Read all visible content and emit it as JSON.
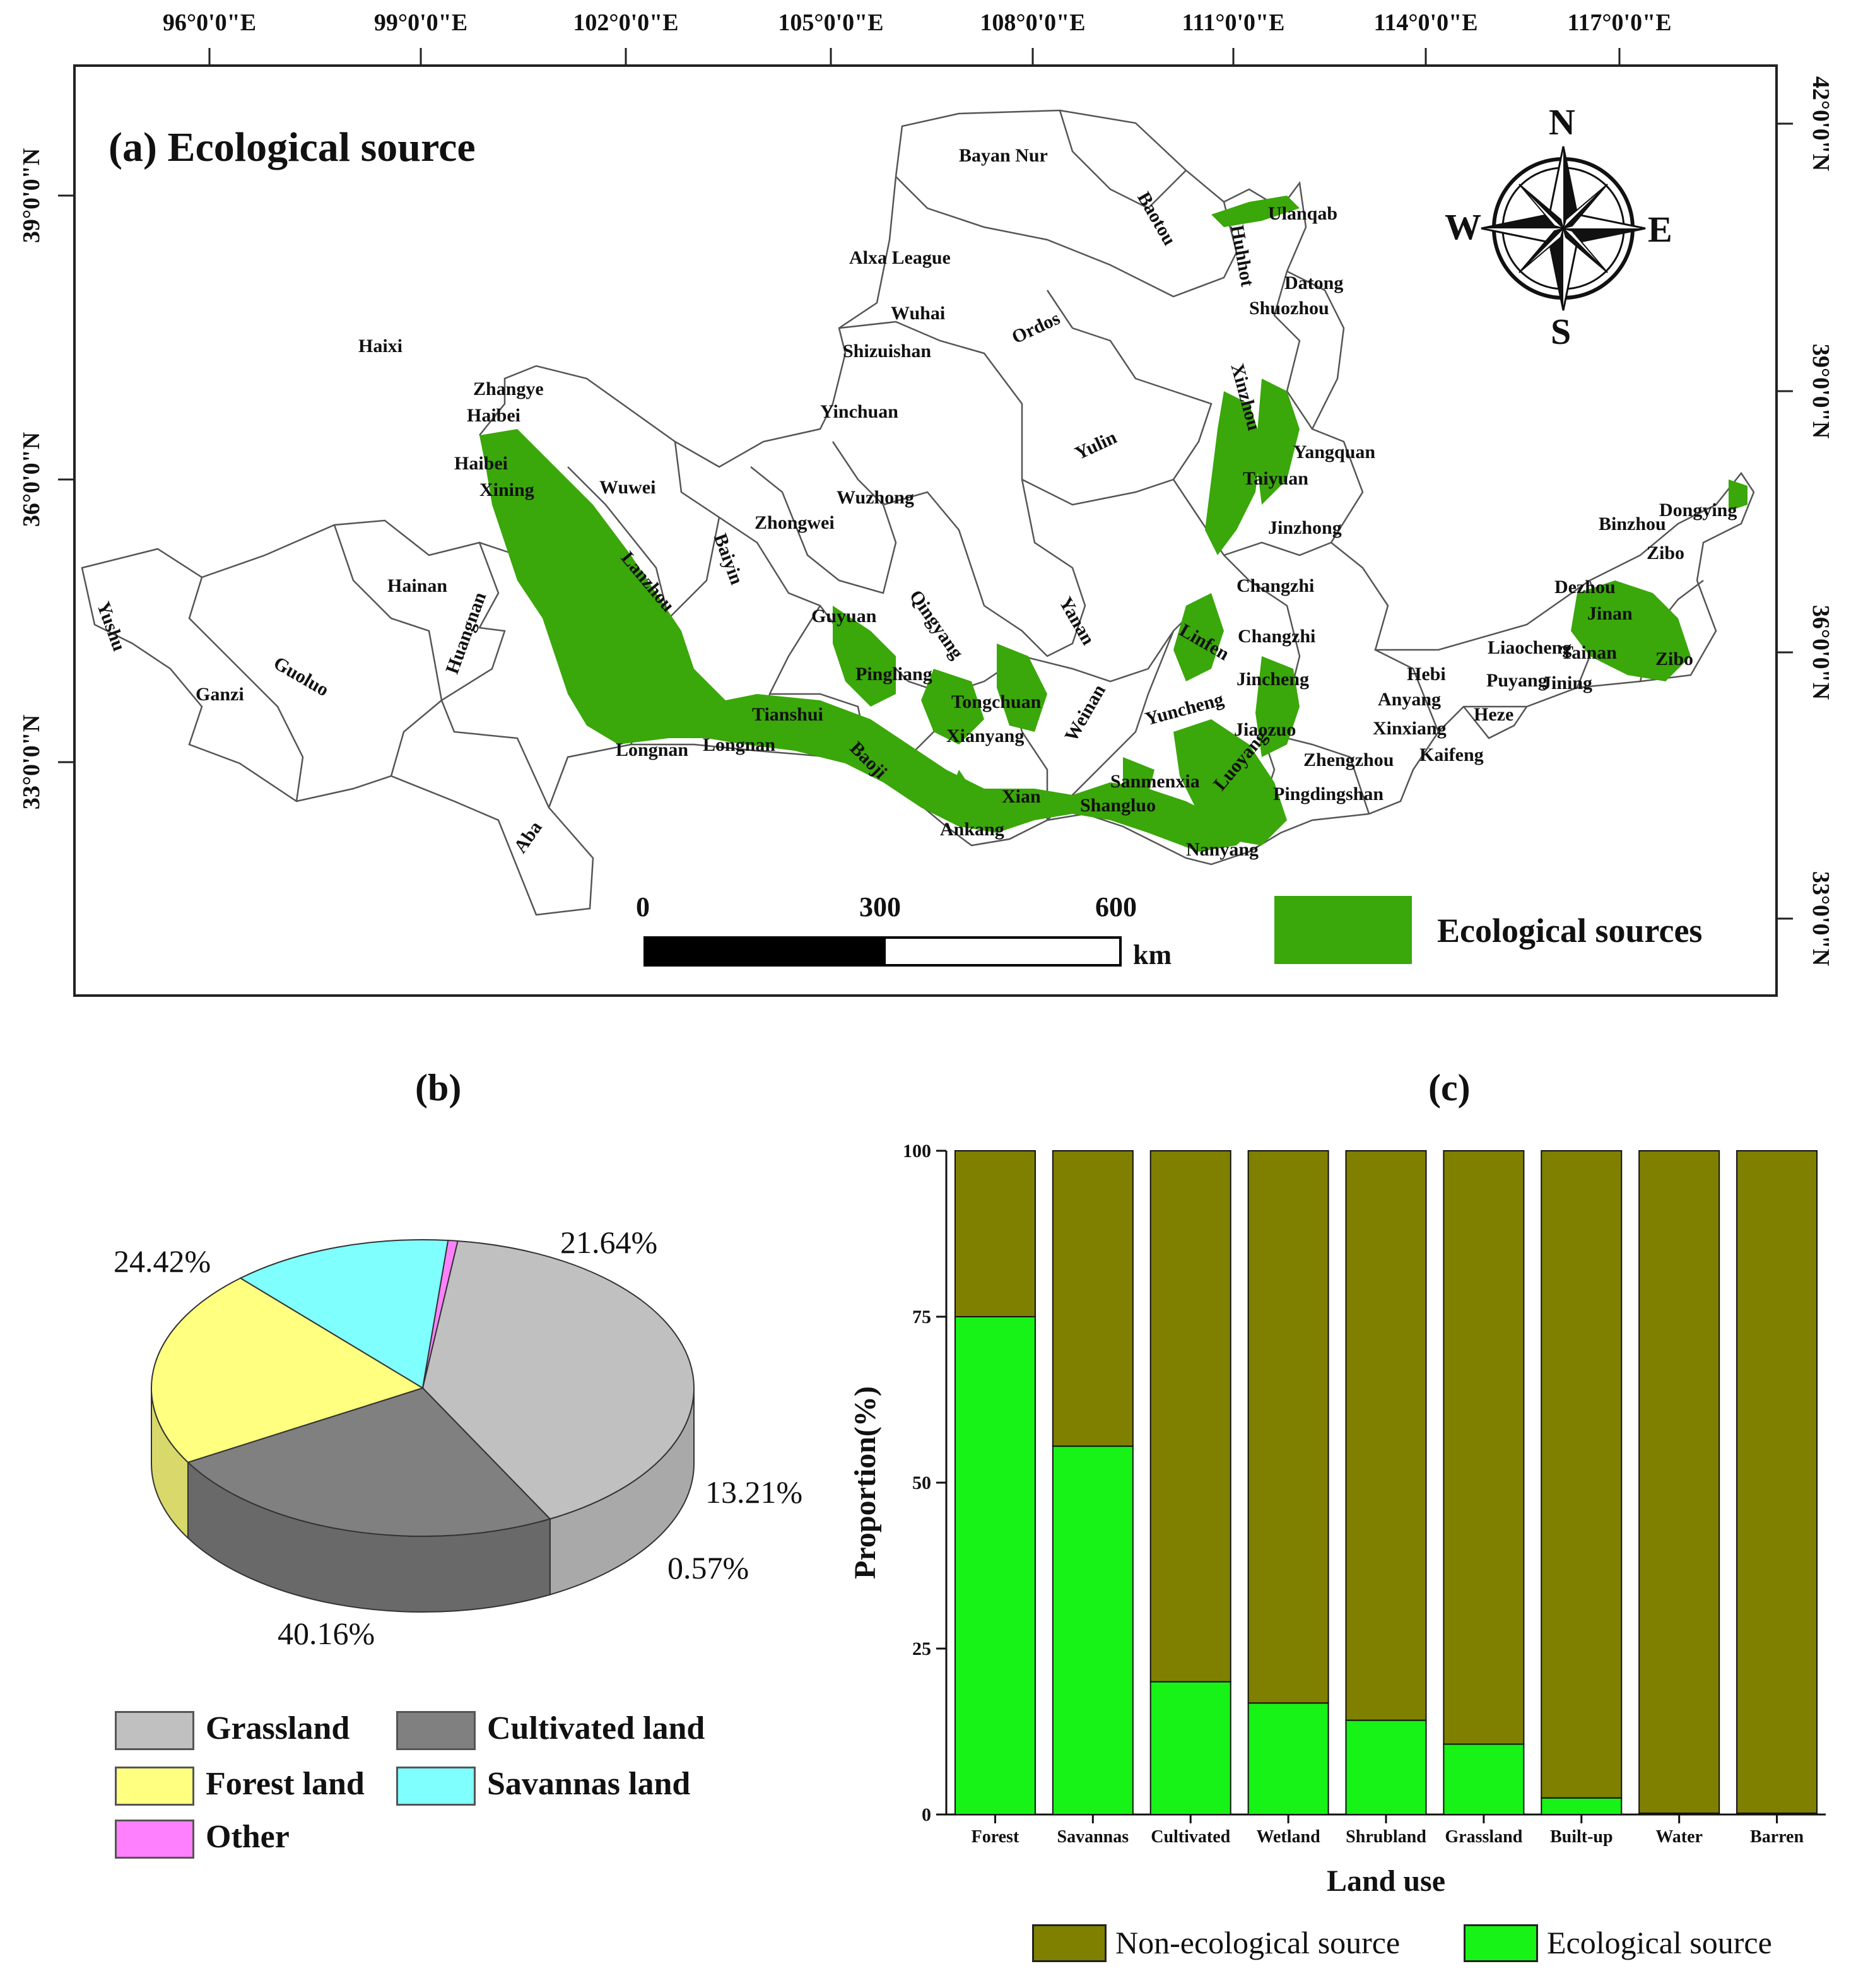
{
  "map": {
    "title": "(a) Ecological source",
    "lon_ticks": [
      "96°0'0\"E",
      "99°0'0\"E",
      "102°0'0\"E",
      "105°0'0\"E",
      "108°0'0\"E",
      "111°0'0\"E",
      "114°0'0\"E",
      "117°0'0\"E"
    ],
    "lat_ticks_left": [
      "39°0'0\"N",
      "36°0'0\"N",
      "33°0'0\"N"
    ],
    "lat_ticks_right": [
      "42°0'0\"N",
      "39°0'0\"N",
      "36°0'0\"N",
      "33°0'0\"N"
    ],
    "compass": {
      "n": "N",
      "s": "S",
      "w": "W",
      "e": "E"
    },
    "scale": {
      "labels": [
        "0",
        "300",
        "600"
      ],
      "unit": "km"
    },
    "legend_label": "Ecological sources",
    "colors": {
      "source": "#3aa70a",
      "boundary": "#555555"
    },
    "place_labels": [
      "Bayan Nur",
      "Baotou",
      "Huhhot",
      "Ulanqab",
      "Alxa League",
      "Datong",
      "Shuozhou",
      "Wuhai",
      "Ordos",
      "Shizuishan",
      "Haixi",
      "Zhangye",
      "Haibei",
      "Yinchuan",
      "Xinzhou",
      "Haibei",
      "Xining",
      "Wuwei",
      "Yulin",
      "Yangquan",
      "Taiyuan",
      "Wuzhong",
      "Zhongwei",
      "Baiyin",
      "Lanzhou",
      "Jinzhong",
      "Binzhou",
      "Dongying",
      "Zibo",
      "Qingyang",
      "Yanan",
      "Hainan",
      "Yushu",
      "Guyuan",
      "Changzhi",
      "Dezhou",
      "Jinan",
      "Guoluo",
      "Linfen",
      "Changzhi",
      "Liaocheng",
      "Tainan",
      "Zibo",
      "Huangnan",
      "Pingliang",
      "Jincheng",
      "Puyang",
      "Hebi",
      "Jining",
      "Ganzi",
      "Tongchuan",
      "Anyang",
      "Tianshui",
      "Yuncheng",
      "Jiaozuo",
      "Xinxiang",
      "Heze",
      "Weinan",
      "Xianyang",
      "Longnan",
      "Longnan",
      "Baoji",
      "Zhengzhou",
      "Kaifeng",
      "Sanmenxia",
      "Xian",
      "Luoyang",
      "Shangluo",
      "Pingdingshan",
      "Ankang",
      "Aba",
      "Nanyang"
    ]
  },
  "pie": {
    "title": "(b)",
    "chart_data": {
      "type": "pie",
      "slices": [
        {
          "label": "Grassland",
          "value": 40.16,
          "color": "#c0c0c0",
          "side": "#a9a9a9"
        },
        {
          "label": "Cultivated land",
          "value": 24.42,
          "color": "#808080",
          "side": "#696969"
        },
        {
          "label": "Forest land",
          "value": 21.64,
          "color": "#ffff80",
          "side": "#d9d96b"
        },
        {
          "label": "Savannas land",
          "value": 13.21,
          "color": "#80ffff",
          "side": "#6ad9d9"
        },
        {
          "label": "Other",
          "value": 0.57,
          "color": "#ff80ff",
          "side": "#d96ad9"
        }
      ],
      "value_labels": [
        "40.16%",
        "24.42%",
        "21.64%",
        "13.21%",
        "0.57%"
      ],
      "legend": [
        "Grassland",
        "Cultivated land",
        "Forest land",
        "Savannas land",
        "Other"
      ]
    }
  },
  "bar": {
    "title": "(c)",
    "chart_data": {
      "type": "bar",
      "stacked": true,
      "categories": [
        "Forest",
        "Savannas",
        "Cultivated",
        "Wetland",
        "Shrubland",
        "Grassland",
        "Built-up",
        "Water",
        "Barren"
      ],
      "series": [
        {
          "name": "Ecological source",
          "color": "#17f217",
          "values": [
            75,
            55.5,
            20,
            16.8,
            14.2,
            10.6,
            2.5,
            0.2,
            0.2
          ]
        },
        {
          "name": "Non-ecological source",
          "color": "#808000",
          "values": [
            25,
            44.5,
            80,
            83.2,
            85.8,
            89.4,
            97.5,
            99.8,
            99.8
          ]
        }
      ],
      "ylim": [
        0,
        100
      ],
      "yticks": [
        "0",
        "25",
        "50",
        "75",
        "100"
      ],
      "xlabel": "Land use",
      "ylabel": "Proportion(%)",
      "legend_order": [
        "Non-ecological source",
        "Ecological source"
      ]
    }
  }
}
